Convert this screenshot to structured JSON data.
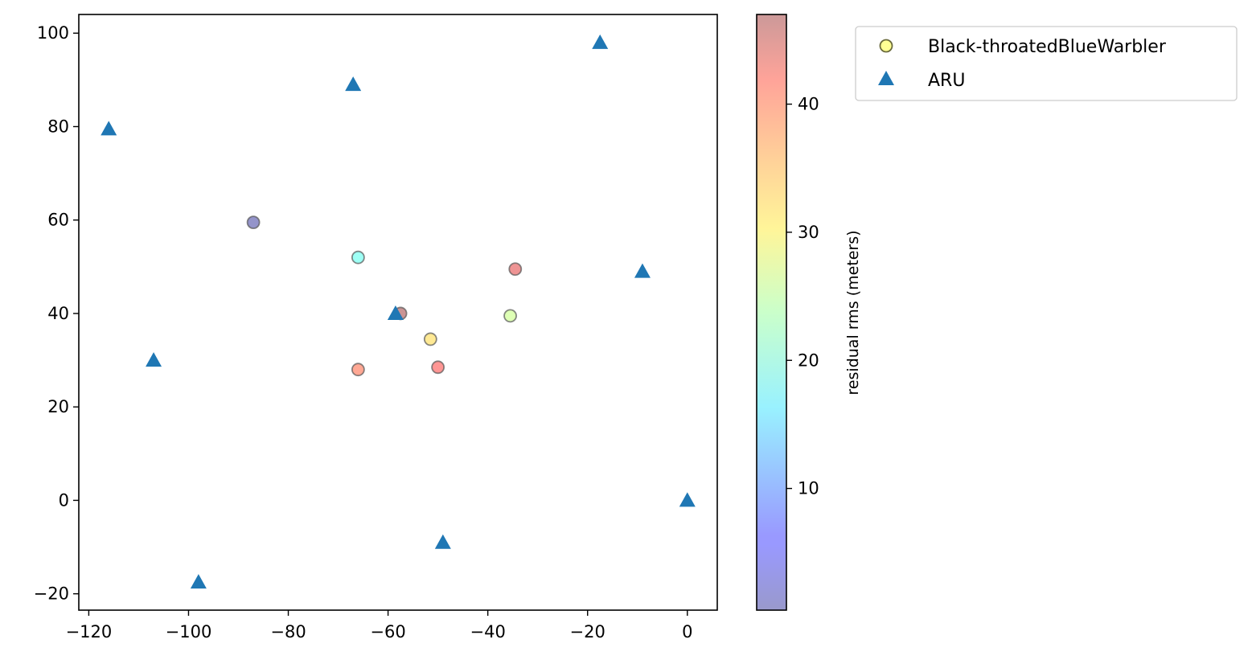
{
  "chart_data": {
    "type": "scatter",
    "title": "",
    "xlabel": "",
    "ylabel": "",
    "xlim": [
      -122,
      6
    ],
    "ylim": [
      -23.5,
      104
    ],
    "xticks": [
      -120,
      -100,
      -80,
      -60,
      -40,
      -20,
      0
    ],
    "yticks": [
      -20,
      0,
      20,
      40,
      60,
      80,
      100
    ],
    "grid": false,
    "legend_position": "outside-top-right",
    "series": [
      {
        "name": "Black-throatedBlueWarbler",
        "marker": "circle",
        "color_by": "residual rms (meters)",
        "points": [
          {
            "x": -87,
            "y": 59.5,
            "rms": 0.5
          },
          {
            "x": -66,
            "y": 52,
            "rms": 19
          },
          {
            "x": -34.5,
            "y": 49.5,
            "rms": 43
          },
          {
            "x": -57.5,
            "y": 40,
            "rms": 47
          },
          {
            "x": -35.5,
            "y": 39.5,
            "rms": 26
          },
          {
            "x": -51.5,
            "y": 34.5,
            "rms": 32
          },
          {
            "x": -66,
            "y": 28,
            "rms": 39
          },
          {
            "x": -50,
            "y": 28.5,
            "rms": 41
          }
        ]
      },
      {
        "name": "ARU",
        "marker": "triangle",
        "color": "#1f77b4",
        "points": [
          {
            "x": -17.5,
            "y": 98
          },
          {
            "x": -67,
            "y": 89
          },
          {
            "x": -116,
            "y": 79.5
          },
          {
            "x": -9,
            "y": 49
          },
          {
            "x": -58.5,
            "y": 40
          },
          {
            "x": -107,
            "y": 30
          },
          {
            "x": 0,
            "y": 0
          },
          {
            "x": -49,
            "y": -9
          },
          {
            "x": -98,
            "y": -17.5
          }
        ]
      }
    ],
    "colorbar": {
      "label": "residual rms (meters)",
      "range": [
        0.5,
        47
      ],
      "ticks": [
        10,
        20,
        30,
        40
      ],
      "colormap": "jet",
      "alpha": 0.4
    }
  }
}
